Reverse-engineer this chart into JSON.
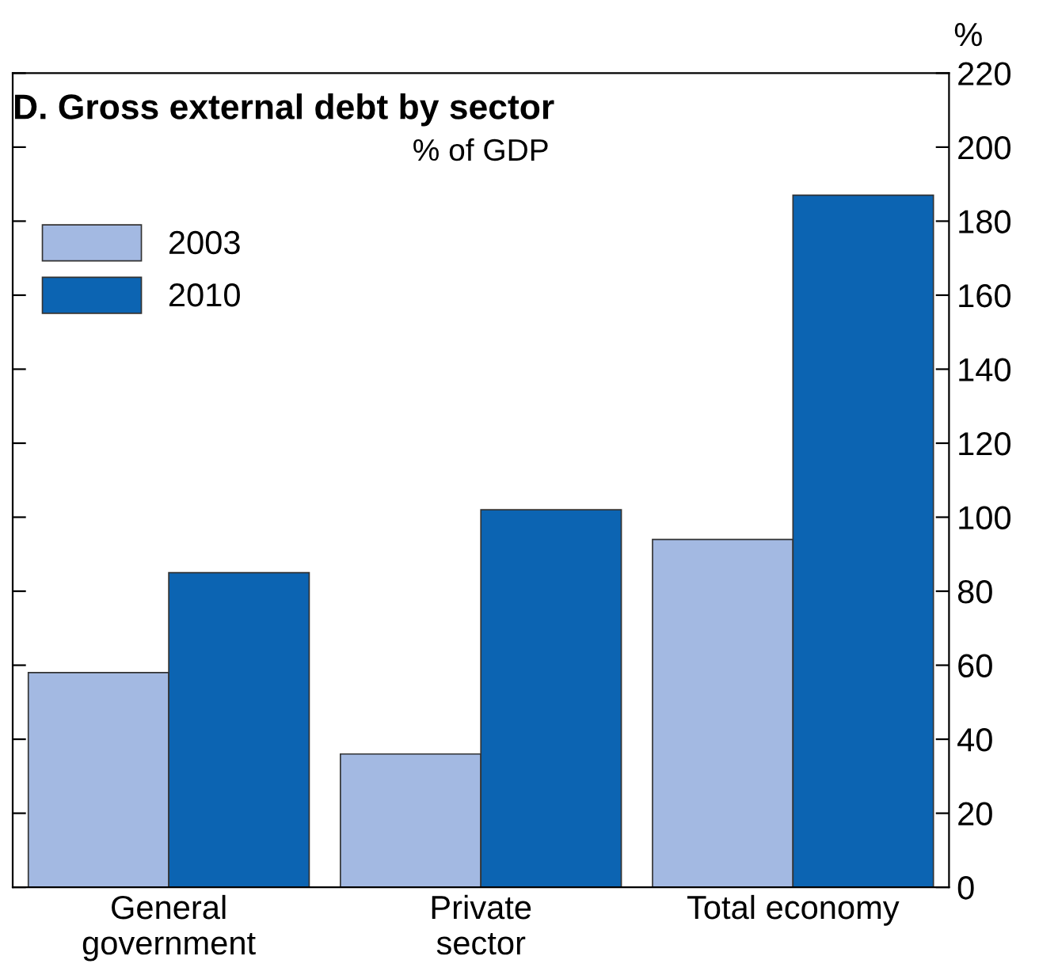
{
  "chart_data": {
    "type": "bar",
    "title": "D. Gross external debt by sector",
    "subtitle": "% of GDP",
    "ylabel": "%",
    "categories": [
      "General\ngovernment",
      "Private\nsector",
      "Total economy"
    ],
    "series": [
      {
        "name": "2003",
        "color": "#a3b9e2",
        "values": [
          58,
          36,
          94
        ]
      },
      {
        "name": "2010",
        "color": "#0c64b2",
        "values": [
          85,
          102,
          187
        ]
      }
    ],
    "ylim": [
      0,
      220
    ],
    "yticks": [
      0,
      20,
      40,
      60,
      80,
      100,
      120,
      140,
      160,
      180,
      200,
      220
    ],
    "grid": false,
    "legend": "top left"
  }
}
